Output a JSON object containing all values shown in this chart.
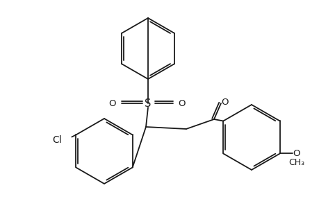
{
  "bg_color": "#ffffff",
  "line_color": "#1a1a1a",
  "line_width": 1.3,
  "font_size": 9.5,
  "dbl_off": 3.0,
  "shrink": 0.12,
  "xlim": [
    0,
    460
  ],
  "ylim": [
    0,
    300
  ]
}
